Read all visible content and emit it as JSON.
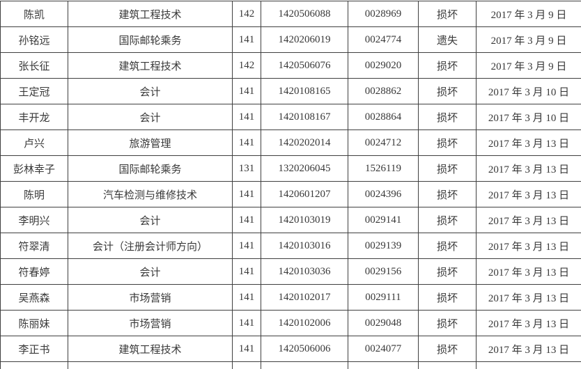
{
  "colors": {
    "background": "#ffffff",
    "border": "#3f3f3f",
    "text": "#383838"
  },
  "table": {
    "column_keys": [
      "name",
      "major",
      "class-no",
      "student-id",
      "cert-no",
      "status",
      "date"
    ],
    "rows": [
      [
        "陈凯",
        "建筑工程技术",
        "142",
        "1420506088",
        "0028969",
        "损坏",
        "2017 年 3 月 9 日"
      ],
      [
        "孙铭远",
        "国际邮轮乘务",
        "141",
        "1420206019",
        "0024774",
        "遗失",
        "2017 年 3 月 9 日"
      ],
      [
        "张长征",
        "建筑工程技术",
        "142",
        "1420506076",
        "0029020",
        "损坏",
        "2017 年 3 月 9 日"
      ],
      [
        "王定冠",
        "会计",
        "141",
        "1420108165",
        "0028862",
        "损坏",
        "2017 年 3 月 10 日"
      ],
      [
        "丰开龙",
        "会计",
        "141",
        "1420108167",
        "0028864",
        "损坏",
        "2017 年 3 月 10 日"
      ],
      [
        "卢兴",
        "旅游管理",
        "141",
        "1420202014",
        "0024712",
        "损坏",
        "2017 年 3 月 13 日"
      ],
      [
        "彭林幸子",
        "国际邮轮乘务",
        "131",
        "1320206045",
        "1526119",
        "损坏",
        "2017 年 3 月 13 日"
      ],
      [
        "陈明",
        "汽车检测与维修技术",
        "141",
        "1420601207",
        "0024396",
        "损坏",
        "2017 年 3 月 13 日"
      ],
      [
        "李明兴",
        "会计",
        "141",
        "1420103019",
        "0029141",
        "损坏",
        "2017 年 3 月 13 日"
      ],
      [
        "符翠清",
        "会计（注册会计师方向）",
        "141",
        "1420103016",
        "0029139",
        "损坏",
        "2017 年 3 月 13 日"
      ],
      [
        "符春婷",
        "会计",
        "141",
        "1420103036",
        "0029156",
        "损坏",
        "2017 年 3 月 13 日"
      ],
      [
        "吴燕森",
        "市场营销",
        "141",
        "1420102017",
        "0029111",
        "损坏",
        "2017 年 3 月 13 日"
      ],
      [
        "陈丽妹",
        "市场营销",
        "141",
        "1420102006",
        "0029048",
        "损坏",
        "2017 年 3 月 13 日"
      ],
      [
        "李正书",
        "建筑工程技术",
        "141",
        "1420506006",
        "0024077",
        "损坏",
        "2017 年 3 月 13 日"
      ]
    ],
    "partial_next_row": true
  }
}
